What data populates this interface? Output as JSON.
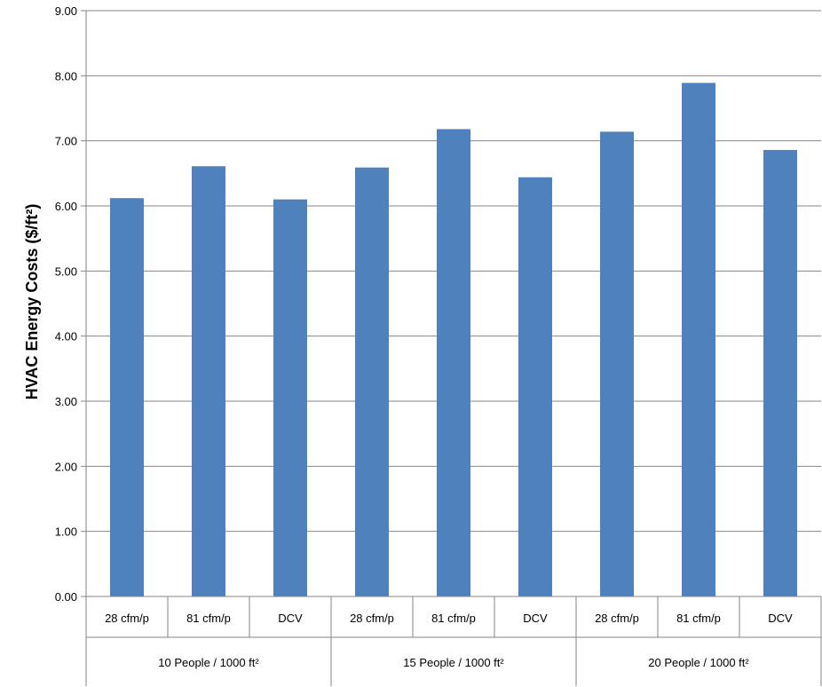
{
  "chart_data": {
    "type": "bar",
    "title": "",
    "xlabel": "",
    "ylabel": "HVAC Energy Costs ($/ft²)",
    "ylim": [
      0,
      9
    ],
    "ytick_step": 1,
    "ytick_labels": [
      "0.00",
      "1.00",
      "2.00",
      "3.00",
      "4.00",
      "5.00",
      "6.00",
      "7.00",
      "8.00",
      "9.00"
    ],
    "grid": true,
    "legend": "none",
    "bar_color": "#4F81BD",
    "groups": [
      "10 People / 1000 ft²",
      "15 People / 1000 ft²",
      "20 People / 1000 ft²"
    ],
    "categories": [
      "28 cfm/p",
      "81 cfm/p",
      "DCV",
      "28 cfm/p",
      "81 cfm/p",
      "DCV",
      "28 cfm/p",
      "81 cfm/p",
      "DCV"
    ],
    "values": [
      6.12,
      6.61,
      6.1,
      6.59,
      7.18,
      6.44,
      7.14,
      7.89,
      6.86
    ]
  }
}
